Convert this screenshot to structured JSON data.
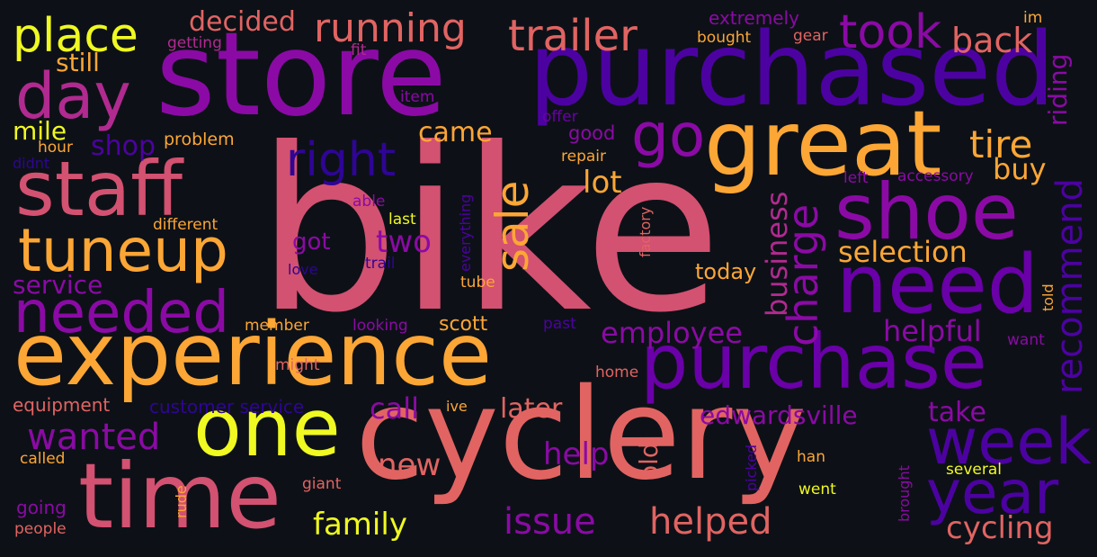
{
  "background": "#0d1117",
  "colors": {
    "c1": "#f0f921",
    "c2": "#fca636",
    "c3": "#e16462",
    "c4": "#d35171",
    "c5": "#b12a90",
    "c6": "#8b0aa5",
    "c7": "#6a00a8",
    "c8": "#4c02a1",
    "c9": "#2e0595"
  },
  "words": {
    "bike": "bike",
    "store": "store",
    "purchased": "purchased",
    "great": "great",
    "staff": "staff",
    "shoe": "shoe",
    "need": "need",
    "experience": "experience",
    "purchase": "purchase",
    "cyclery": "cyclery",
    "time": "time",
    "one": "one",
    "tuneup": "tuneup",
    "needed": "needed",
    "day": "day",
    "place": "place",
    "running": "running",
    "trailer": "trailer",
    "took": "took",
    "back": "back",
    "go": "go",
    "right": "right",
    "tire": "tire",
    "week": "week",
    "year": "year",
    "sale": "sale",
    "charge": "charge",
    "recommend": "recommend",
    "riding": "riding",
    "decided": "decided",
    "still": "still",
    "mile": "mile",
    "shop": "shop",
    "came": "came",
    "lot": "lot",
    "business": "business",
    "buy": "buy",
    "selection": "selection",
    "two": "two",
    "got": "got",
    "service": "service",
    "today": "today",
    "employee": "employee",
    "helpful": "helpful",
    "wanted": "wanted",
    "call": "call",
    "later": "later",
    "edwardsville": "edwardsville",
    "take": "take",
    "help": "help",
    "old": "old",
    "new": "new",
    "family": "family",
    "issue": "issue",
    "helped": "helped",
    "cycling": "cycling",
    "equipment": "equipment",
    "customer_service": "customer service",
    "scott": "scott",
    "extremely": "extremely",
    "getting": "getting",
    "fit": "fit",
    "bought": "bought",
    "gear": "gear",
    "im": "im",
    "item": "item",
    "offer": "offer",
    "good": "good",
    "problem": "problem",
    "hour": "hour",
    "didnt": "didnt",
    "repair": "repair",
    "everything": "everything",
    "able": "able",
    "different": "different",
    "last": "last",
    "factory": "factory",
    "left": "left",
    "accessory": "accessory",
    "trail": "trail",
    "love": "love",
    "tube": "tube",
    "member": "member",
    "looking": "looking",
    "past": "past",
    "might": "might",
    "home": "home",
    "want": "want",
    "told": "told",
    "ive": "ive",
    "called": "called",
    "rude": "rude",
    "giant": "giant",
    "going": "going",
    "people": "people",
    "picked": "picked",
    "han": "han",
    "went": "went",
    "brought": "brought",
    "several": "several"
  }
}
